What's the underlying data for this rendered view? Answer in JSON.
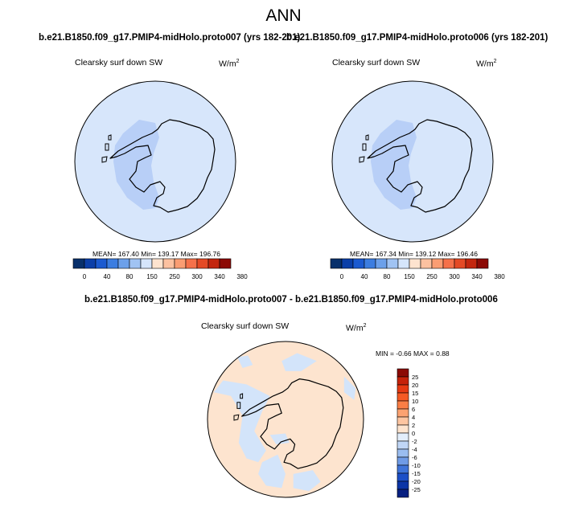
{
  "page": {
    "title": "ANN",
    "diff_title": "b.e21.B1850.f09_g17.PMIP4-midHolo.proto007 - b.e21.B1850.f09_g17.PMIP4-midHolo.proto006"
  },
  "colors": {
    "ocean_base": "#d7e6fb",
    "continent_shade": "#b8cff7",
    "diff_base": "#fde4cf",
    "diff_neg": "#d3e4fa",
    "coast": "#000000"
  },
  "chart_data": [
    {
      "type": "heatmap",
      "title": "b.e21.B1850.f09_g17.PMIP4-midHolo.proto007 (yrs 182-201)",
      "variable": "Clearsky surf down SW",
      "units": "W/m",
      "units_superscript": "2",
      "projection": "south-polar-stereographic",
      "stats": {
        "mean": "167.40",
        "min": "139.17",
        "max": "196.76"
      },
      "stats_text": "MEAN= 167.40  Min= 139.17  Max= 196.76",
      "colorbar": {
        "orientation": "horizontal",
        "colors": [
          "#08306b",
          "#0b3fa8",
          "#1b5ad0",
          "#3c7de0",
          "#6ca0ea",
          "#a0c3f3",
          "#d5e5fb",
          "#fde3cf",
          "#fcc1a0",
          "#fa9d73",
          "#f5714a",
          "#e44a25",
          "#c3260e",
          "#8c0a05"
        ],
        "tick_labels": [
          "0",
          "40",
          "80",
          "150",
          "250",
          "300",
          "340",
          "380"
        ]
      }
    },
    {
      "type": "heatmap",
      "title": "b.e21.B1850.f09_g17.PMIP4-midHolo.proto006 (yrs 182-201)",
      "variable": "Clearsky surf down SW",
      "units": "W/m",
      "units_superscript": "2",
      "projection": "south-polar-stereographic",
      "stats": {
        "mean": "167.34",
        "min": "139.12",
        "max": "196.46"
      },
      "stats_text": "MEAN= 167.34  Min= 139.12  Max= 196.46",
      "colorbar": {
        "orientation": "horizontal",
        "colors": [
          "#08306b",
          "#0b3fa8",
          "#1b5ad0",
          "#3c7de0",
          "#6ca0ea",
          "#a0c3f3",
          "#d5e5fb",
          "#fde3cf",
          "#fcc1a0",
          "#fa9d73",
          "#f5714a",
          "#e44a25",
          "#c3260e",
          "#8c0a05"
        ],
        "tick_labels": [
          "0",
          "40",
          "80",
          "150",
          "250",
          "300",
          "340",
          "380"
        ]
      }
    },
    {
      "type": "heatmap",
      "title": "b.e21.B1850.f09_g17.PMIP4-midHolo.proto007 - b.e21.B1850.f09_g17.PMIP4-midHolo.proto006",
      "variable": "Clearsky surf down SW",
      "units": "W/m",
      "units_superscript": "2",
      "projection": "south-polar-stereographic",
      "stats": {
        "min": "-0.66",
        "max": "0.88"
      },
      "stats_text": "MIN =  -0.66 MAX =   0.88",
      "colorbar": {
        "orientation": "vertical",
        "colors": [
          "#8b0a05",
          "#c5220a",
          "#e63a13",
          "#f55a24",
          "#fa7e45",
          "#fca271",
          "#fdc5a1",
          "#fde4cf",
          "#e3eefb",
          "#c0d6f6",
          "#9abdf0",
          "#6f9be6",
          "#3f74d9",
          "#1c4fc7",
          "#0b35a6",
          "#082081"
        ],
        "tick_labels": [
          "25",
          "20",
          "15",
          "10",
          "6",
          "4",
          "2",
          "0",
          "-2",
          "-4",
          "-6",
          "-10",
          "-15",
          "-20",
          "-25"
        ]
      }
    }
  ]
}
